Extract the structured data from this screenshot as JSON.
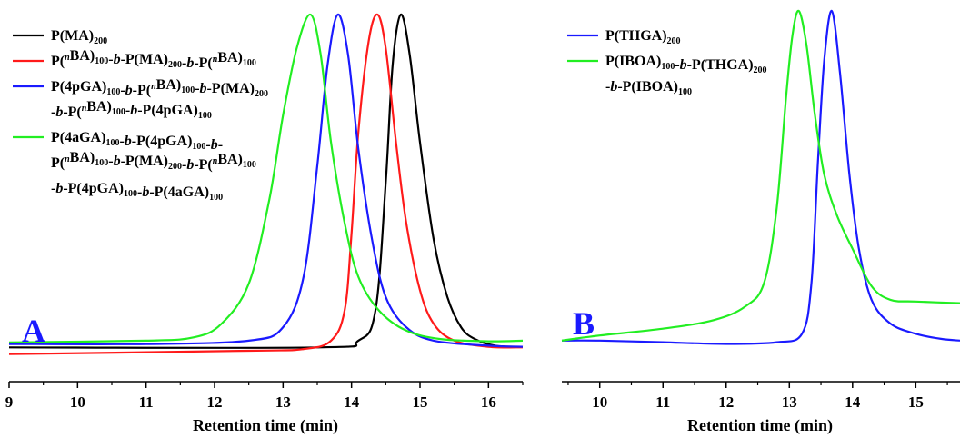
{
  "colors": {
    "black": "#000000",
    "red": "#ff1a1a",
    "blue": "#1a1aff",
    "green": "#22ee22",
    "panel_letter": "#1a1aff"
  },
  "chart_data": [
    {
      "type": "line",
      "panel": "A",
      "xlabel": "Retention time (min)",
      "ylabel": "",
      "xlim": [
        9,
        16.5
      ],
      "ylim": [
        0,
        1.1
      ],
      "x_ticks": [
        9,
        10,
        11,
        12,
        13,
        14,
        15,
        16
      ],
      "grid": false,
      "legend_position": "top-left",
      "series": [
        {
          "name": "P(MA)200",
          "legend_lines": [
            [
              {
                "t": "P(MA)"
              },
              {
                "t": "200",
                "sub": true
              }
            ]
          ],
          "color": "#000000",
          "points": [
            [
              9,
              0.01
            ],
            [
              13.5,
              0.01
            ],
            [
              14.1,
              0.03
            ],
            [
              14.35,
              0.12
            ],
            [
              14.5,
              0.5
            ],
            [
              14.6,
              0.85
            ],
            [
              14.72,
              1.0
            ],
            [
              14.85,
              0.88
            ],
            [
              15.0,
              0.62
            ],
            [
              15.2,
              0.33
            ],
            [
              15.4,
              0.16
            ],
            [
              15.6,
              0.07
            ],
            [
              15.8,
              0.035
            ],
            [
              16.1,
              0.015
            ],
            [
              16.5,
              0.012
            ]
          ]
        },
        {
          "name": "P(nBA)100-b-P(MA)200-b-P(nBA)100",
          "legend_lines": [
            [
              {
                "t": "P("
              },
              {
                "t": "n",
                "sup": true
              },
              {
                "t": "BA)"
              },
              {
                "t": "100",
                "sub": true
              },
              {
                "t": "-"
              },
              {
                "t": "b",
                "it": true
              },
              {
                "t": "-P(MA)"
              },
              {
                "t": "200",
                "sub": true
              },
              {
                "t": "-"
              },
              {
                "t": "b",
                "it": true
              },
              {
                "t": "-P("
              },
              {
                "t": "n",
                "sup": true
              },
              {
                "t": "BA)"
              },
              {
                "t": "100",
                "sub": true
              }
            ]
          ],
          "color": "#ff1a1a",
          "points": [
            [
              9,
              -0.01
            ],
            [
              12.5,
              0.0
            ],
            [
              13.3,
              0.005
            ],
            [
              13.7,
              0.03
            ],
            [
              13.9,
              0.12
            ],
            [
              14.0,
              0.35
            ],
            [
              14.1,
              0.65
            ],
            [
              14.25,
              0.92
            ],
            [
              14.38,
              1.0
            ],
            [
              14.5,
              0.9
            ],
            [
              14.65,
              0.62
            ],
            [
              14.8,
              0.38
            ],
            [
              15.0,
              0.18
            ],
            [
              15.2,
              0.08
            ],
            [
              15.5,
              0.03
            ],
            [
              16.0,
              0.012
            ],
            [
              16.5,
              0.01
            ]
          ]
        },
        {
          "name": "P(4pGA)100-b-P(nBA)100-b-P(MA)200-b-P(nBA)100-b-P(4pGA)100",
          "legend_lines": [
            [
              {
                "t": "P(4pGA)"
              },
              {
                "t": "100",
                "sub": true
              },
              {
                "t": "-"
              },
              {
                "t": "b",
                "it": true
              },
              {
                "t": "-P("
              },
              {
                "t": "n",
                "sup": true
              },
              {
                "t": "BA)"
              },
              {
                "t": "100",
                "sub": true
              },
              {
                "t": "-"
              },
              {
                "t": "b",
                "it": true
              },
              {
                "t": "-P(MA)"
              },
              {
                "t": "200",
                "sub": true
              }
            ],
            [
              {
                "t": "-"
              },
              {
                "t": "b",
                "it": true
              },
              {
                "t": "-P("
              },
              {
                "t": "n",
                "sup": true
              },
              {
                "t": "BA)"
              },
              {
                "t": "100",
                "sub": true
              },
              {
                "t": "-"
              },
              {
                "t": "b",
                "it": true
              },
              {
                "t": "-P(4pGA)"
              },
              {
                "t": "100",
                "sub": true
              }
            ]
          ],
          "color": "#1a1aff",
          "points": [
            [
              9,
              0.02
            ],
            [
              11,
              0.02
            ],
            [
              12.5,
              0.03
            ],
            [
              13.0,
              0.07
            ],
            [
              13.3,
              0.22
            ],
            [
              13.5,
              0.55
            ],
            [
              13.65,
              0.85
            ],
            [
              13.8,
              1.0
            ],
            [
              13.95,
              0.88
            ],
            [
              14.1,
              0.6
            ],
            [
              14.3,
              0.33
            ],
            [
              14.5,
              0.16
            ],
            [
              14.8,
              0.07
            ],
            [
              15.2,
              0.03
            ],
            [
              16.0,
              0.015
            ],
            [
              16.5,
              0.012
            ]
          ]
        },
        {
          "name": "P(4aGA)100-b-P(4pGA)100-b-P(nBA)100-b-P(MA)200-b-P(nBA)100-b-P(4pGA)100-b-P(4aGA)100",
          "legend_lines": [
            [
              {
                "t": "P(4aGA)"
              },
              {
                "t": "100",
                "sub": true
              },
              {
                "t": "-"
              },
              {
                "t": "b",
                "it": true
              },
              {
                "t": "-P(4pGA)"
              },
              {
                "t": "100",
                "sub": true
              },
              {
                "t": "-"
              },
              {
                "t": "b",
                "it": true
              },
              {
                "t": "-"
              }
            ],
            [
              {
                "t": "P("
              },
              {
                "t": "n",
                "sup": true
              },
              {
                "t": "BA)"
              },
              {
                "t": "100",
                "sub": true
              },
              {
                "t": "-"
              },
              {
                "t": "b",
                "it": true
              },
              {
                "t": "-P(MA)"
              },
              {
                "t": "200",
                "sub": true
              },
              {
                "t": "-"
              },
              {
                "t": "b",
                "it": true
              },
              {
                "t": "-P("
              },
              {
                "t": "n",
                "sup": true
              },
              {
                "t": "BA)"
              },
              {
                "t": "100",
                "sub": true
              }
            ],
            [
              {
                "t": "-"
              },
              {
                "t": "b",
                "it": true
              },
              {
                "t": "-P(4pGA)"
              },
              {
                "t": "100",
                "sub": true
              },
              {
                "t": "-"
              },
              {
                "t": "b",
                "it": true
              },
              {
                "t": "-P(4aGA)"
              },
              {
                "t": "100",
                "sub": true
              }
            ]
          ],
          "color": "#22ee22",
          "points": [
            [
              9,
              0.025
            ],
            [
              11,
              0.03
            ],
            [
              11.7,
              0.04
            ],
            [
              12.1,
              0.08
            ],
            [
              12.5,
              0.2
            ],
            [
              12.8,
              0.45
            ],
            [
              13.0,
              0.7
            ],
            [
              13.2,
              0.9
            ],
            [
              13.4,
              1.0
            ],
            [
              13.55,
              0.88
            ],
            [
              13.7,
              0.62
            ],
            [
              13.9,
              0.38
            ],
            [
              14.1,
              0.22
            ],
            [
              14.4,
              0.12
            ],
            [
              14.8,
              0.06
            ],
            [
              15.3,
              0.035
            ],
            [
              16.0,
              0.028
            ],
            [
              16.5,
              0.03
            ]
          ]
        }
      ]
    },
    {
      "type": "line",
      "panel": "B",
      "xlabel": "Retention time (min)",
      "ylabel": "",
      "xlim": [
        9.4,
        15.7
      ],
      "ylim": [
        0,
        1.1
      ],
      "x_ticks": [
        10,
        11,
        12,
        13,
        14,
        15
      ],
      "grid": false,
      "legend_position": "top-left",
      "series": [
        {
          "name": "P(THGA)200",
          "legend_lines": [
            [
              {
                "t": "P(THGA)"
              },
              {
                "t": "200",
                "sub": true
              }
            ]
          ],
          "color": "#1a1aff",
          "points": [
            [
              9.4,
              0.03
            ],
            [
              10,
              0.03
            ],
            [
              11,
              0.025
            ],
            [
              12,
              0.02
            ],
            [
              12.8,
              0.025
            ],
            [
              13.2,
              0.05
            ],
            [
              13.35,
              0.2
            ],
            [
              13.45,
              0.55
            ],
            [
              13.55,
              0.85
            ],
            [
              13.67,
              1.0
            ],
            [
              13.8,
              0.82
            ],
            [
              13.95,
              0.52
            ],
            [
              14.1,
              0.3
            ],
            [
              14.3,
              0.15
            ],
            [
              14.6,
              0.08
            ],
            [
              15.0,
              0.05
            ],
            [
              15.4,
              0.035
            ],
            [
              15.7,
              0.03
            ]
          ]
        },
        {
          "name": "P(IBOA)100-b-P(THGA)200-b-P(IBOA)100",
          "legend_lines": [
            [
              {
                "t": "P(IBOA)"
              },
              {
                "t": "100",
                "sub": true
              },
              {
                "t": "-"
              },
              {
                "t": "b",
                "it": true
              },
              {
                "t": "-P(THGA)"
              },
              {
                "t": "200",
                "sub": true
              }
            ],
            [
              {
                "t": "-"
              },
              {
                "t": "b",
                "it": true
              },
              {
                "t": "-P(IBOA)"
              },
              {
                "t": "100",
                "sub": true
              }
            ]
          ],
          "color": "#22ee22",
          "points": [
            [
              9.4,
              0.03
            ],
            [
              10,
              0.045
            ],
            [
              11,
              0.065
            ],
            [
              11.8,
              0.09
            ],
            [
              12.3,
              0.13
            ],
            [
              12.6,
              0.2
            ],
            [
              12.8,
              0.42
            ],
            [
              12.95,
              0.75
            ],
            [
              13.05,
              0.93
            ],
            [
              13.15,
              1.0
            ],
            [
              13.27,
              0.9
            ],
            [
              13.4,
              0.7
            ],
            [
              13.55,
              0.52
            ],
            [
              13.75,
              0.4
            ],
            [
              14.0,
              0.3
            ],
            [
              14.3,
              0.19
            ],
            [
              14.6,
              0.15
            ],
            [
              15.0,
              0.145
            ],
            [
              15.7,
              0.14
            ]
          ]
        }
      ]
    }
  ]
}
